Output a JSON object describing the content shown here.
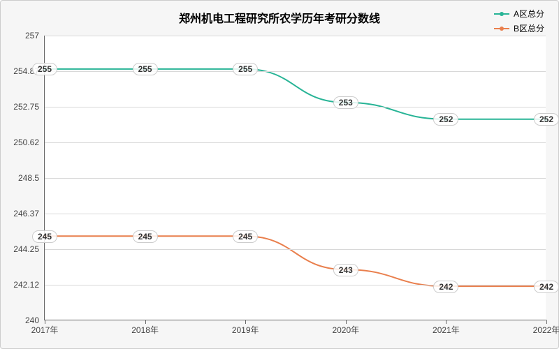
{
  "chart": {
    "title": "郑州机电工程研究所农学历年考研分数线",
    "title_fontsize": 16,
    "background_color": "#f6f6f6",
    "plot_background": "#ffffff",
    "grid_color": "#d8d8d8",
    "axis_color": "#666666",
    "label_color": "#444444",
    "label_fontsize": 12,
    "x": {
      "categories": [
        "2017年",
        "2018年",
        "2019年",
        "2020年",
        "2021年",
        "2022年"
      ]
    },
    "y": {
      "min": 240,
      "max": 257,
      "ticks": [
        240,
        242.12,
        244.25,
        246.37,
        248.5,
        250.62,
        252.75,
        254.87,
        257
      ]
    },
    "series": [
      {
        "name": "A区总分",
        "color": "#28b496",
        "line_width": 2,
        "marker": "circle",
        "marker_size": 6,
        "values": [
          255,
          255,
          255,
          253,
          252,
          252
        ]
      },
      {
        "name": "B区总分",
        "color": "#e97f4d",
        "line_width": 2,
        "marker": "circle",
        "marker_size": 6,
        "values": [
          245,
          245,
          245,
          243,
          242,
          242
        ]
      }
    ],
    "point_label": {
      "background": "rgba(255,255,255,0.85)",
      "border_color": "#cccccc",
      "fontsize": 12
    }
  }
}
